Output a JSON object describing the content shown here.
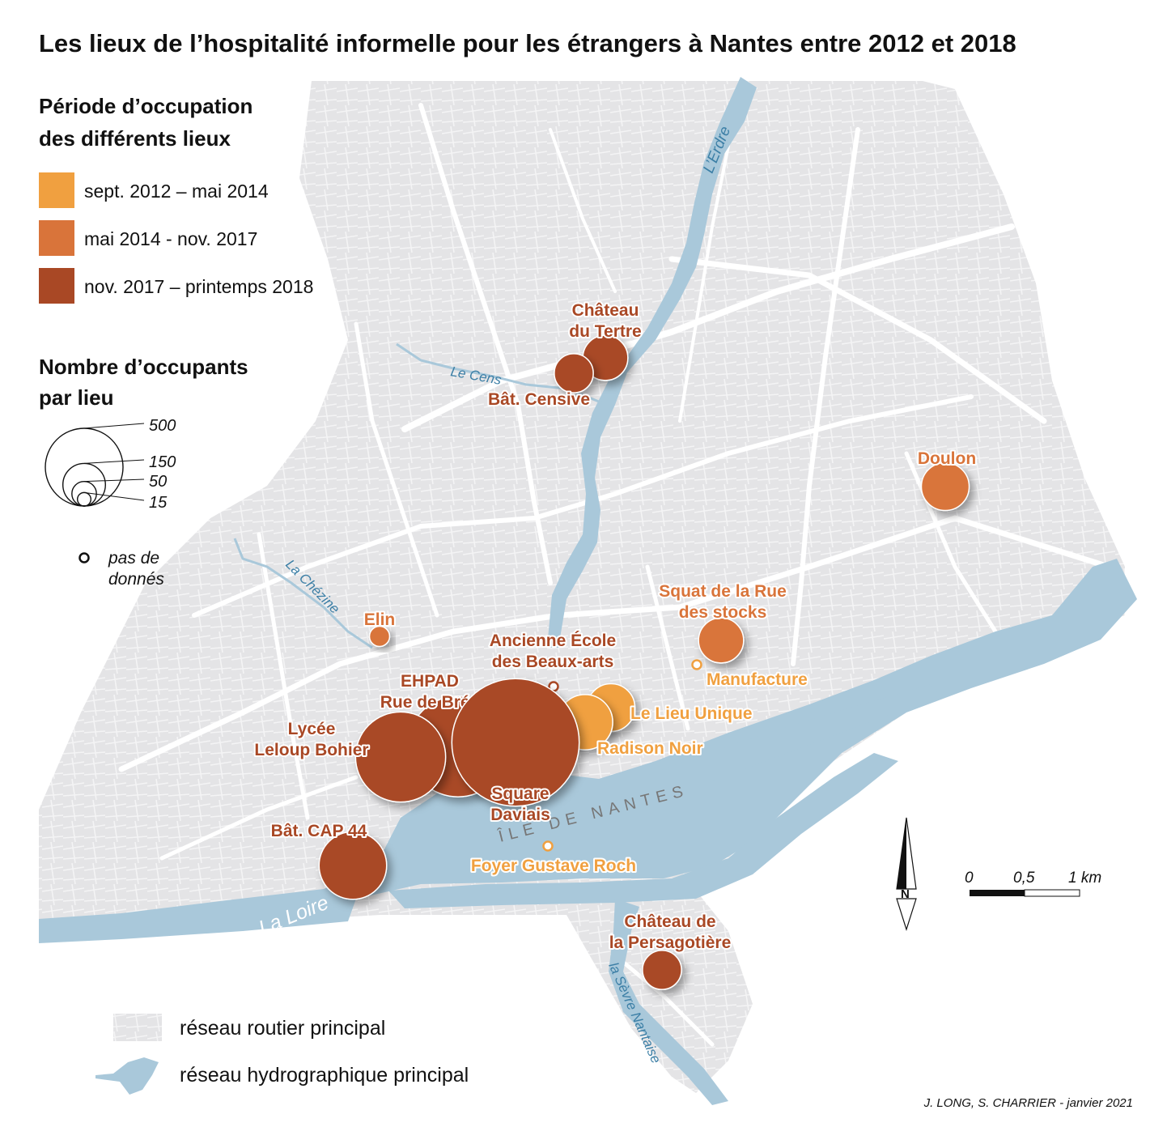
{
  "title": "Les lieux de l’hospitalité informelle pour les étrangers à Nantes entre 2012 et 2018",
  "legend": {
    "period_title_1": "Période d’occupation",
    "period_title_2": "des différents lieux",
    "periods": [
      {
        "label": "sept. 2012 – mai 2014",
        "color": "#F0A040"
      },
      {
        "label": "mai 2014 -  nov. 2017",
        "color": "#D9743A"
      },
      {
        "label": "nov. 2017 – printemps 2018",
        "color": "#A94825"
      }
    ],
    "size_title_1": "Nombre d’occupants",
    "size_title_2": "par lieu",
    "sizes": [
      {
        "value": 500,
        "label": "500"
      },
      {
        "value": 150,
        "label": "150"
      },
      {
        "value": 50,
        "label": "50"
      },
      {
        "value": 15,
        "label": "15"
      }
    ],
    "nodata_1": "pas de",
    "nodata_2": "donnés",
    "road_label": "réseau routier principal",
    "water_label": "réseau hydrographique principal"
  },
  "rivers": {
    "erdre": "L’Erdre",
    "cens": "Le Cens",
    "chezine": "La Chézine",
    "loire": "La Loire",
    "sevre": "la Sèvre Nantaise"
  },
  "district_label": "ÎLE DE NANTES",
  "scale": {
    "zero": "0",
    "half": "0,5",
    "one": "1 km"
  },
  "north": "N",
  "credit": "J. LONG, S. CHARRIER - janvier 2021",
  "colors": {
    "land": "#E6E6E8",
    "road": "#FFFFFF",
    "water": "#A9C8DA",
    "water_text": "#3C7FA6"
  },
  "places": [
    {
      "name_lines": [
        "Château",
        "du Tertre"
      ],
      "period": 2,
      "occupants": 40
    },
    {
      "name_lines": [
        "Bât. Censive"
      ],
      "period": 2,
      "occupants": 30
    },
    {
      "name_lines": [
        "Doulon"
      ],
      "period": 1,
      "occupants": 45
    },
    {
      "name_lines": [
        "Squat de la Rue",
        "des stocks"
      ],
      "period": 1,
      "occupants": 40
    },
    {
      "name_lines": [
        "Manufacture"
      ],
      "period": 0,
      "occupants": null
    },
    {
      "name_lines": [
        "Elin"
      ],
      "period": 1,
      "occupants": 8
    },
    {
      "name_lines": [
        "Ancienne École",
        "des Beaux-arts"
      ],
      "period": 2,
      "occupants": null
    },
    {
      "name_lines": [
        "Le Lieu Unique"
      ],
      "period": 0,
      "occupants": 45
    },
    {
      "name_lines": [
        "Radison Noir"
      ],
      "period": 0,
      "occupants": 60
    },
    {
      "name_lines": [
        "EHPAD",
        "Rue de Bréa"
      ],
      "period": 2,
      "occupants": 200
    },
    {
      "name_lines": [
        "Lycée",
        "Leloup Bohier"
      ],
      "period": 2,
      "occupants": 160
    },
    {
      "name_lines": [
        "Square",
        "Daviais"
      ],
      "period": 2,
      "occupants": 320
    },
    {
      "name_lines": [
        "Bât. CAP 44"
      ],
      "period": 2,
      "occupants": 90
    },
    {
      "name_lines": [
        "Foyer Gustave Roch"
      ],
      "period": 0,
      "occupants": null
    },
    {
      "name_lines": [
        "Château de",
        "la Persagotière"
      ],
      "period": 2,
      "occupants": 30
    }
  ]
}
